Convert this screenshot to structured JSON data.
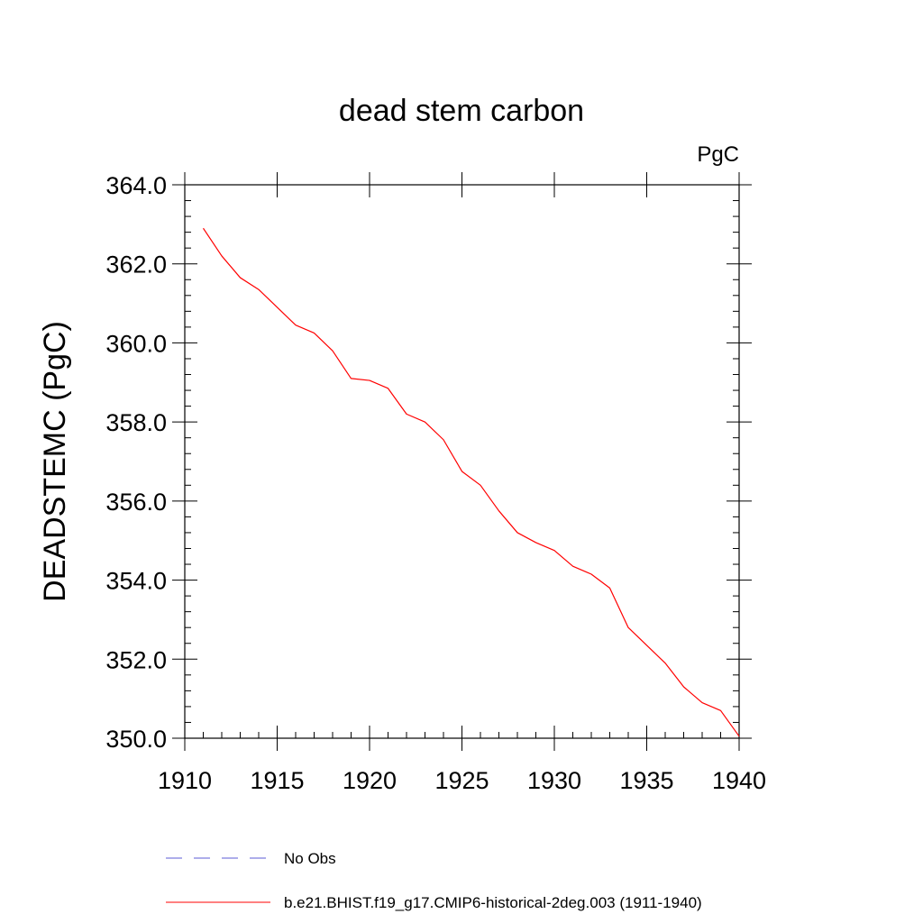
{
  "chart_data": {
    "type": "line",
    "title": "dead stem carbon",
    "units_label": "PgC",
    "xlabel": "",
    "ylabel": "DEADSTEMC  (PgC)",
    "xlim": [
      1910,
      1940
    ],
    "ylim": [
      350.0,
      364.0
    ],
    "x_ticks": [
      "1910",
      "1915",
      "1920",
      "1925",
      "1930",
      "1935",
      "1940"
    ],
    "y_ticks": [
      "350.0",
      "352.0",
      "354.0",
      "356.0",
      "358.0",
      "360.0",
      "362.0",
      "364.0"
    ],
    "grid": false,
    "legend_position": "bottom",
    "legend": [
      {
        "label": "No Obs",
        "color": "#5b5bd6",
        "style": "dashed"
      },
      {
        "label": "b.e21.BHIST.f19_g17.CMIP6-historical-2deg.003 (1911-1940)",
        "color": "#ff0000",
        "style": "solid"
      }
    ],
    "series": [
      {
        "name": "b.e21.BHIST.f19_g17.CMIP6-historical-2deg.003 (1911-1940)",
        "color": "#ff0000",
        "x": [
          1911,
          1912,
          1913,
          1914,
          1915,
          1916,
          1917,
          1918,
          1919,
          1920,
          1921,
          1922,
          1923,
          1924,
          1925,
          1926,
          1927,
          1928,
          1929,
          1930,
          1931,
          1932,
          1933,
          1934,
          1935,
          1936,
          1937,
          1938,
          1939,
          1940
        ],
        "y": [
          362.9,
          362.2,
          361.65,
          361.35,
          360.9,
          360.45,
          360.25,
          359.8,
          359.1,
          359.05,
          358.85,
          358.2,
          358.0,
          357.55,
          356.75,
          356.4,
          355.75,
          355.2,
          354.95,
          354.75,
          354.35,
          354.15,
          353.8,
          352.8,
          352.35,
          351.9,
          351.3,
          350.9,
          350.7,
          350.05
        ]
      }
    ]
  }
}
